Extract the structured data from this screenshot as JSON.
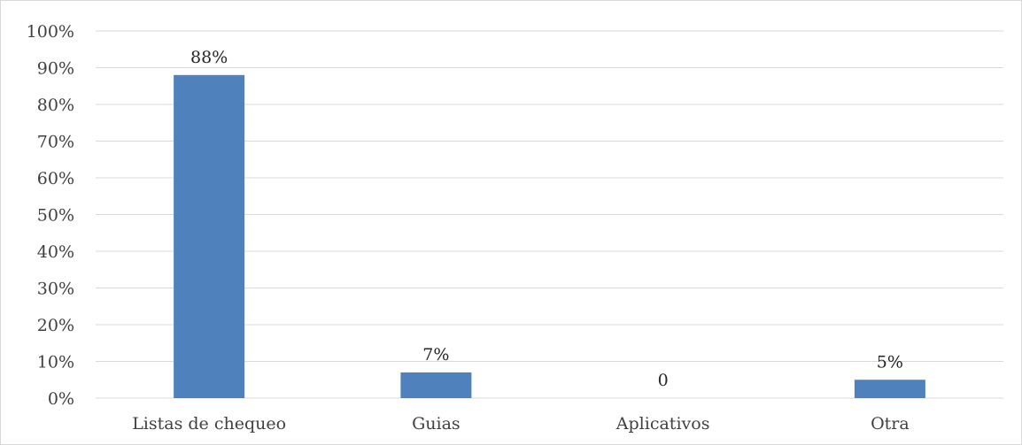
{
  "chart_data": {
    "type": "bar",
    "categories": [
      "Listas de chequeo",
      "Guias",
      "Aplicativos",
      "Otra"
    ],
    "values": [
      88,
      7,
      0,
      5
    ],
    "data_labels": [
      "88%",
      "7%",
      "0",
      "5%"
    ],
    "y_ticks": [
      "0%",
      "10%",
      "20%",
      "30%",
      "40%",
      "50%",
      "60%",
      "70%",
      "80%",
      "90%",
      "100%"
    ],
    "ylim": [
      0,
      100
    ],
    "y_unit": "%",
    "grid": true,
    "bar_color": "#4f81bd",
    "grid_color": "#d9d9d9",
    "title": "",
    "xlabel": "",
    "ylabel": ""
  }
}
